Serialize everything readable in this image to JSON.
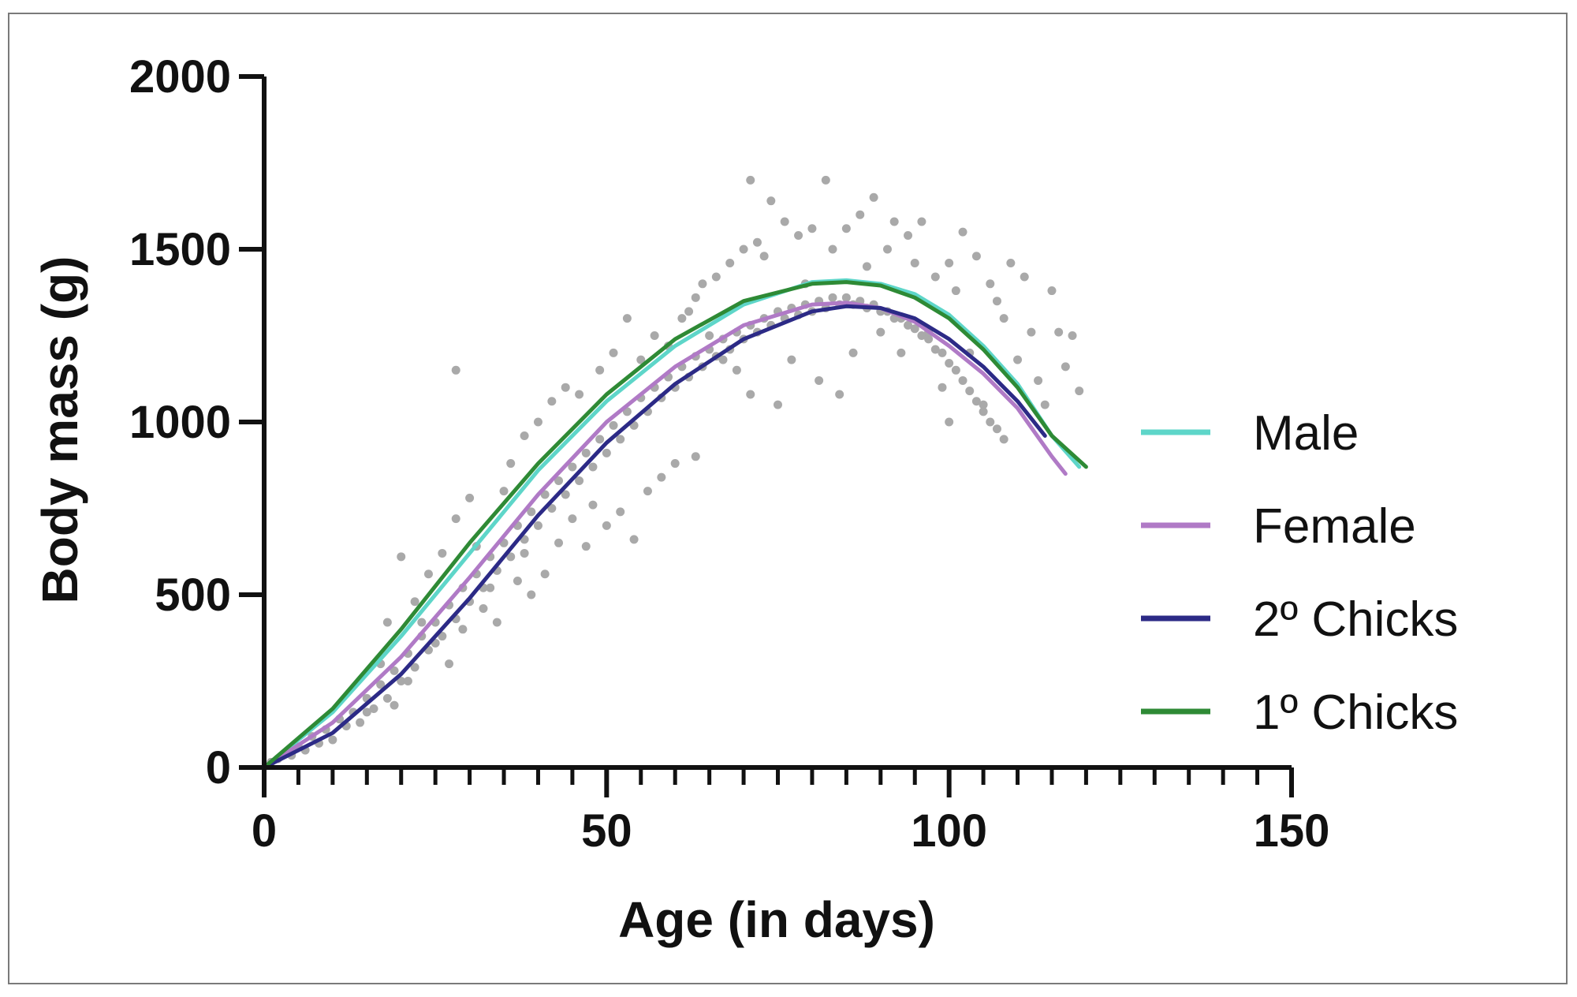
{
  "chart_data": {
    "type": "scatter",
    "title": "",
    "xlabel": "Age (in days)",
    "ylabel": "Body mass (g)",
    "xlim": [
      0,
      150
    ],
    "ylim": [
      0,
      2000
    ],
    "x_ticks": [
      0,
      50,
      100,
      150
    ],
    "x_tick_labels": [
      "0",
      "50",
      "100",
      "150"
    ],
    "y_ticks": [
      0,
      500,
      1000,
      1500,
      2000
    ],
    "y_tick_labels": [
      "0",
      "500",
      "1000",
      "1500",
      "2000"
    ],
    "x_minor_step": 5,
    "grid": false,
    "legend_position": "right",
    "point_color": "#a9a9a9",
    "scatter_points": [
      [
        1,
        15
      ],
      [
        2,
        25
      ],
      [
        3,
        40
      ],
      [
        4,
        35
      ],
      [
        5,
        60
      ],
      [
        6,
        50
      ],
      [
        7,
        90
      ],
      [
        8,
        70
      ],
      [
        9,
        110
      ],
      [
        10,
        80
      ],
      [
        11,
        140
      ],
      [
        12,
        120
      ],
      [
        13,
        160
      ],
      [
        14,
        130
      ],
      [
        15,
        200
      ],
      [
        16,
        170
      ],
      [
        17,
        240
      ],
      [
        18,
        200
      ],
      [
        19,
        280
      ],
      [
        20,
        250
      ],
      [
        21,
        330
      ],
      [
        22,
        290
      ],
      [
        23,
        380
      ],
      [
        24,
        340
      ],
      [
        25,
        420
      ],
      [
        26,
        380
      ],
      [
        27,
        470
      ],
      [
        28,
        430
      ],
      [
        29,
        520
      ],
      [
        30,
        480
      ],
      [
        31,
        560
      ],
      [
        32,
        520
      ],
      [
        33,
        610
      ],
      [
        34,
        570
      ],
      [
        35,
        650
      ],
      [
        36,
        610
      ],
      [
        37,
        700
      ],
      [
        38,
        660
      ],
      [
        39,
        740
      ],
      [
        40,
        700
      ],
      [
        41,
        790
      ],
      [
        42,
        750
      ],
      [
        43,
        830
      ],
      [
        44,
        790
      ],
      [
        45,
        870
      ],
      [
        46,
        830
      ],
      [
        47,
        910
      ],
      [
        48,
        870
      ],
      [
        49,
        950
      ],
      [
        50,
        910
      ],
      [
        51,
        990
      ],
      [
        52,
        950
      ],
      [
        53,
        1030
      ],
      [
        54,
        990
      ],
      [
        55,
        1070
      ],
      [
        56,
        1030
      ],
      [
        57,
        1100
      ],
      [
        58,
        1070
      ],
      [
        59,
        1130
      ],
      [
        60,
        1100
      ],
      [
        61,
        1160
      ],
      [
        62,
        1130
      ],
      [
        63,
        1190
      ],
      [
        64,
        1160
      ],
      [
        65,
        1210
      ],
      [
        66,
        1190
      ],
      [
        67,
        1240
      ],
      [
        68,
        1210
      ],
      [
        69,
        1260
      ],
      [
        70,
        1240
      ],
      [
        71,
        1280
      ],
      [
        72,
        1260
      ],
      [
        73,
        1300
      ],
      [
        74,
        1280
      ],
      [
        75,
        1320
      ],
      [
        76,
        1300
      ],
      [
        77,
        1330
      ],
      [
        78,
        1310
      ],
      [
        79,
        1340
      ],
      [
        80,
        1320
      ],
      [
        81,
        1350
      ],
      [
        82,
        1330
      ],
      [
        83,
        1360
      ],
      [
        84,
        1340
      ],
      [
        85,
        1360
      ],
      [
        86,
        1340
      ],
      [
        87,
        1350
      ],
      [
        88,
        1330
      ],
      [
        89,
        1340
      ],
      [
        90,
        1320
      ],
      [
        91,
        1320
      ],
      [
        92,
        1300
      ],
      [
        93,
        1300
      ],
      [
        94,
        1280
      ],
      [
        95,
        1270
      ],
      [
        96,
        1250
      ],
      [
        97,
        1240
      ],
      [
        98,
        1210
      ],
      [
        99,
        1200
      ],
      [
        100,
        1170
      ],
      [
        101,
        1150
      ],
      [
        102,
        1120
      ],
      [
        103,
        1090
      ],
      [
        104,
        1060
      ],
      [
        105,
        1030
      ],
      [
        106,
        1000
      ],
      [
        107,
        980
      ],
      [
        108,
        950
      ],
      [
        18,
        420
      ],
      [
        20,
        610
      ],
      [
        22,
        480
      ],
      [
        24,
        560
      ],
      [
        26,
        620
      ],
      [
        28,
        1150
      ],
      [
        28,
        720
      ],
      [
        30,
        780
      ],
      [
        31,
        640
      ],
      [
        32,
        460
      ],
      [
        33,
        520
      ],
      [
        34,
        420
      ],
      [
        35,
        800
      ],
      [
        36,
        880
      ],
      [
        37,
        540
      ],
      [
        38,
        960
      ],
      [
        38,
        620
      ],
      [
        39,
        500
      ],
      [
        40,
        1000
      ],
      [
        41,
        560
      ],
      [
        42,
        1060
      ],
      [
        43,
        650
      ],
      [
        44,
        1100
      ],
      [
        45,
        720
      ],
      [
        46,
        1080
      ],
      [
        47,
        640
      ],
      [
        48,
        760
      ],
      [
        49,
        1150
      ],
      [
        50,
        700
      ],
      [
        51,
        1200
      ],
      [
        52,
        740
      ],
      [
        53,
        1300
      ],
      [
        54,
        660
      ],
      [
        55,
        1180
      ],
      [
        56,
        800
      ],
      [
        57,
        1250
      ],
      [
        58,
        840
      ],
      [
        59,
        1220
      ],
      [
        60,
        880
      ],
      [
        61,
        1300
      ],
      [
        62,
        1320
      ],
      [
        63,
        1360
      ],
      [
        63,
        900
      ],
      [
        64,
        1400
      ],
      [
        65,
        1250
      ],
      [
        66,
        1420
      ],
      [
        67,
        1180
      ],
      [
        68,
        1460
      ],
      [
        69,
        1150
      ],
      [
        70,
        1500
      ],
      [
        71,
        1700
      ],
      [
        71,
        1080
      ],
      [
        72,
        1520
      ],
      [
        73,
        1480
      ],
      [
        74,
        1640
      ],
      [
        75,
        1050
      ],
      [
        76,
        1580
      ],
      [
        77,
        1180
      ],
      [
        78,
        1540
      ],
      [
        79,
        1400
      ],
      [
        80,
        1560
      ],
      [
        81,
        1120
      ],
      [
        82,
        1700
      ],
      [
        83,
        1500
      ],
      [
        84,
        1080
      ],
      [
        85,
        1560
      ],
      [
        86,
        1200
      ],
      [
        87,
        1600
      ],
      [
        88,
        1450
      ],
      [
        89,
        1650
      ],
      [
        90,
        1260
      ],
      [
        91,
        1500
      ],
      [
        92,
        1580
      ],
      [
        93,
        1200
      ],
      [
        94,
        1540
      ],
      [
        95,
        1460
      ],
      [
        96,
        1580
      ],
      [
        97,
        1260
      ],
      [
        98,
        1420
      ],
      [
        99,
        1100
      ],
      [
        100,
        1460
      ],
      [
        100,
        1000
      ],
      [
        101,
        1380
      ],
      [
        102,
        1550
      ],
      [
        103,
        1200
      ],
      [
        104,
        1480
      ],
      [
        105,
        1050
      ],
      [
        106,
        1400
      ],
      [
        107,
        1350
      ],
      [
        108,
        1300
      ],
      [
        109,
        1460
      ],
      [
        110,
        1180
      ],
      [
        111,
        1420
      ],
      [
        112,
        1260
      ],
      [
        113,
        1120
      ],
      [
        114,
        1050
      ],
      [
        115,
        1380
      ],
      [
        116,
        1260
      ],
      [
        117,
        1160
      ],
      [
        118,
        1250
      ],
      [
        119,
        1090
      ],
      [
        15,
        160
      ],
      [
        17,
        300
      ],
      [
        19,
        180
      ],
      [
        21,
        250
      ],
      [
        23,
        420
      ],
      [
        25,
        360
      ],
      [
        27,
        300
      ],
      [
        29,
        400
      ]
    ],
    "series": [
      {
        "name": "Male",
        "color": "#5ed6c9",
        "x": [
          0,
          10,
          20,
          30,
          40,
          50,
          60,
          70,
          80,
          85,
          90,
          95,
          100,
          105,
          110,
          115,
          119
        ],
        "y": [
          0,
          160,
          380,
          620,
          860,
          1060,
          1220,
          1340,
          1405,
          1410,
          1400,
          1370,
          1310,
          1220,
          1110,
          960,
          870
        ]
      },
      {
        "name": "Female",
        "color": "#b07ac6",
        "x": [
          0,
          10,
          20,
          30,
          40,
          50,
          60,
          70,
          80,
          85,
          90,
          95,
          100,
          105,
          110,
          115,
          117
        ],
        "y": [
          0,
          130,
          320,
          550,
          790,
          1000,
          1160,
          1280,
          1340,
          1345,
          1330,
          1290,
          1220,
          1140,
          1040,
          900,
          850
        ]
      },
      {
        "name": "2º Chicks",
        "color": "#2c2a86",
        "x": [
          0,
          10,
          20,
          30,
          40,
          50,
          60,
          70,
          80,
          85,
          90,
          95,
          100,
          105,
          110,
          114
        ],
        "y": [
          0,
          100,
          270,
          490,
          730,
          940,
          1110,
          1240,
          1320,
          1335,
          1330,
          1300,
          1240,
          1160,
          1060,
          960
        ]
      },
      {
        "name": "1º Chicks",
        "color": "#2e8a35",
        "x": [
          0,
          10,
          20,
          30,
          40,
          50,
          60,
          70,
          80,
          85,
          90,
          95,
          100,
          105,
          110,
          115,
          120
        ],
        "y": [
          0,
          170,
          400,
          650,
          880,
          1080,
          1240,
          1350,
          1400,
          1405,
          1395,
          1360,
          1300,
          1210,
          1100,
          960,
          870
        ]
      }
    ]
  }
}
